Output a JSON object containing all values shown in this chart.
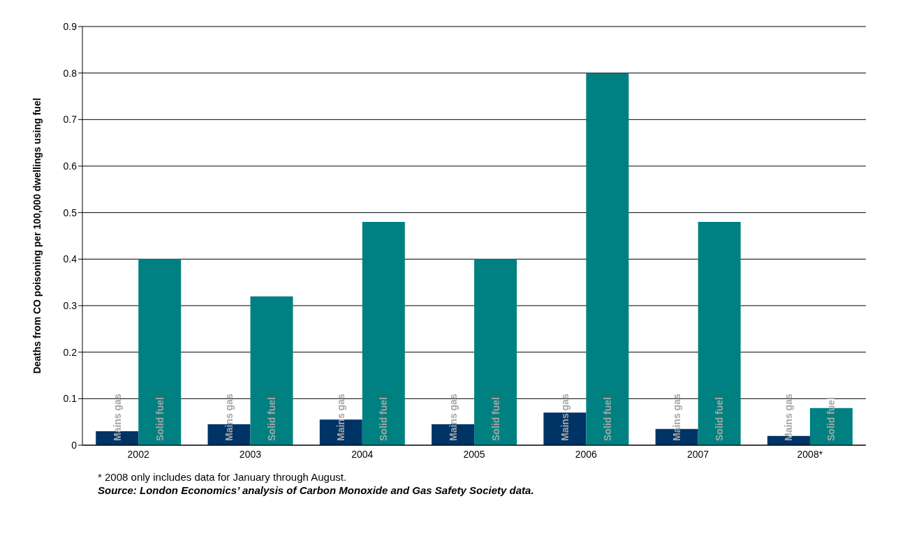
{
  "chart_data": {
    "type": "bar",
    "ylabel": "Deaths from CO poisoning per 100,000 dwellings using fuel",
    "categories": [
      "2002",
      "2003",
      "2004",
      "2005",
      "2006",
      "2007",
      "2008*"
    ],
    "series": [
      {
        "name": "Mains gas",
        "color": "#003366",
        "values": [
          0.03,
          0.045,
          0.055,
          0.045,
          0.07,
          0.035,
          0.02
        ]
      },
      {
        "name": "Solid fuel",
        "color": "#008080",
        "values": [
          0.4,
          0.32,
          0.48,
          0.4,
          0.8,
          0.48,
          0.08
        ]
      }
    ],
    "ylim": [
      0,
      0.9
    ],
    "yticks": [
      0,
      0.1,
      0.2,
      0.3,
      0.4,
      0.5,
      0.6,
      0.7,
      0.8,
      0.9
    ],
    "grid": "y",
    "legend": false,
    "annotations": [
      "* 2008 only includes data for January through August.",
      "Source: London Economics’ analysis of Carbon Monoxide and Gas Safety Society data."
    ]
  }
}
